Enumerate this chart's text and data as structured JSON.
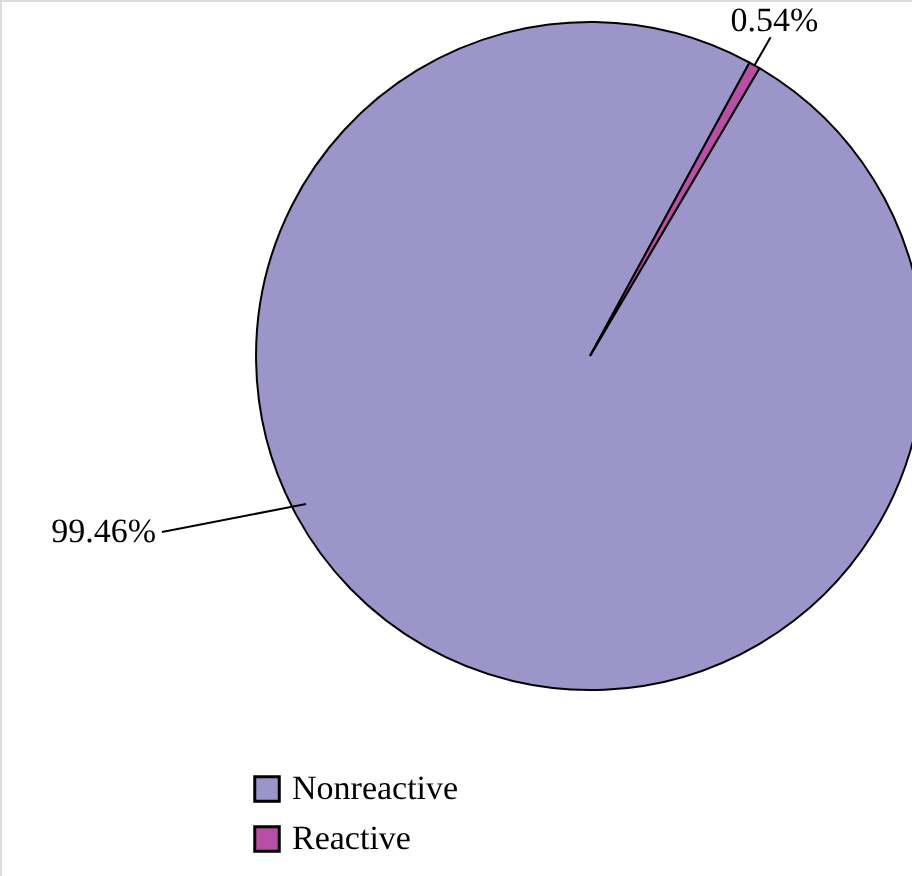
{
  "chart_data": {
    "type": "pie",
    "categories": [
      "Nonreactive",
      "Reactive"
    ],
    "values": [
      99.46,
      0.54
    ],
    "colors": [
      "#9b95c9",
      "#b84fa6"
    ],
    "value_labels": [
      "99.46%",
      "0.54%"
    ],
    "legend": "bottom left"
  }
}
